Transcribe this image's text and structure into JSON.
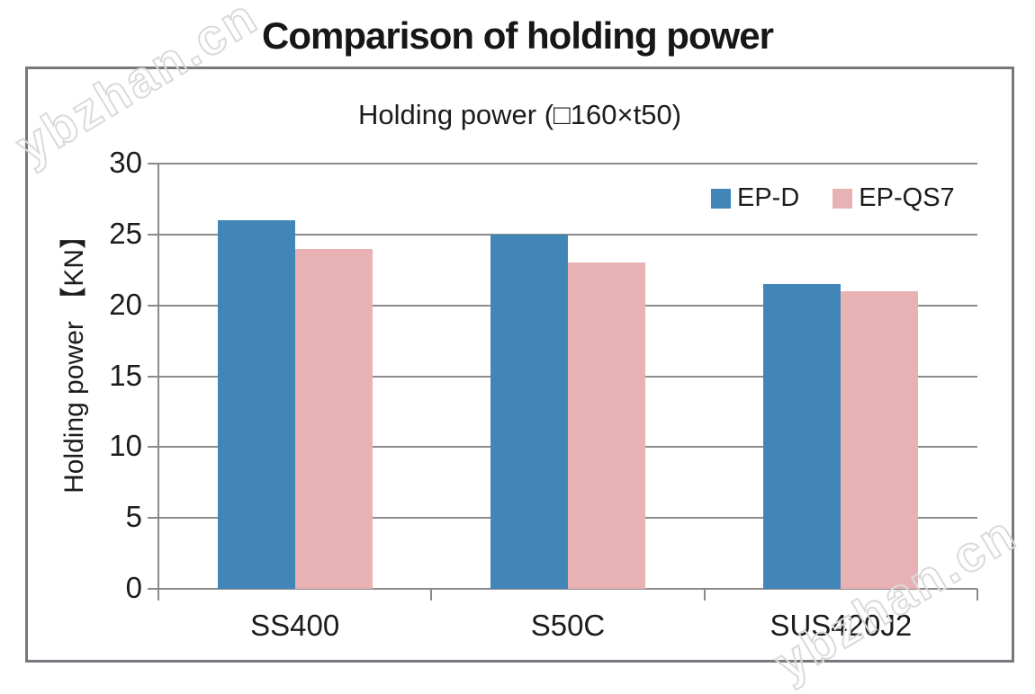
{
  "title": "Comparison of holding power",
  "watermark": {
    "text": "ybzhan.cn",
    "color": "#dadada"
  },
  "chart_data": {
    "type": "bar",
    "title": "Holding power (□160×t50)",
    "ylabel": "Holding power 【KN】",
    "xlabel": "",
    "categories": [
      "SS400",
      "S50C",
      "SUS420J2"
    ],
    "series": [
      {
        "name": "EP-D",
        "color": "#4286b8",
        "values": [
          26.0,
          25.0,
          21.5
        ]
      },
      {
        "name": "EP-QS7",
        "color": "#e8b2b4",
        "values": [
          24.0,
          23.0,
          21.0
        ]
      }
    ],
    "ylim": [
      0,
      30
    ],
    "yticks": [
      0,
      5,
      10,
      15,
      20,
      25,
      30
    ],
    "grid": true,
    "legend_position": "top-right",
    "colors": {
      "grid": "#8c8c8c",
      "axis": "#8a8a8a",
      "border": "#75797d",
      "text": "#1c1c1c"
    }
  }
}
